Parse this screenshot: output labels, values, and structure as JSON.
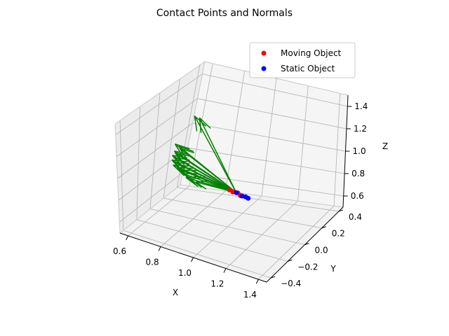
{
  "chart_data": {
    "type": "scatter",
    "title": "Contact Points and Normals",
    "xlabel": "X",
    "ylabel": "Y",
    "zlabel": "Z",
    "xlim": [
      0.55,
      1.45
    ],
    "ylim": [
      -0.45,
      0.45
    ],
    "zlim": [
      0.5,
      1.5
    ],
    "x_ticks": [
      "0.6",
      "0.8",
      "1.0",
      "1.2",
      "1.4"
    ],
    "y_ticks": [
      "−0.4",
      "−0.2",
      "0.0",
      "0.2",
      "0.4"
    ],
    "z_ticks": [
      "0.6",
      "0.8",
      "1.0",
      "1.2",
      "1.4"
    ],
    "grid": true,
    "legend_position": "top-right",
    "colors": {
      "moving": "#ff0000",
      "static": "#0000ff",
      "normals": "#008000"
    },
    "series": [
      {
        "name": "Moving Object",
        "marker": "circle",
        "points": [
          [
            1.0,
            0.0,
            0.81
          ],
          [
            1.02,
            0.0,
            0.8
          ],
          [
            1.05,
            0.0,
            0.8
          ],
          [
            1.07,
            -0.01,
            0.79
          ]
        ]
      },
      {
        "name": "Static Object",
        "marker": "circle",
        "points": [
          [
            1.04,
            0.0,
            0.8
          ],
          [
            1.08,
            -0.01,
            0.79
          ],
          [
            1.1,
            -0.01,
            0.79
          ],
          [
            1.12,
            -0.02,
            0.79
          ]
        ]
      }
    ],
    "normals": {
      "origin": [
        1.04,
        0.0,
        0.8
      ],
      "tips": [
        [
          0.72,
          0.09,
          1.3
        ],
        [
          0.74,
          0.11,
          1.28
        ],
        [
          0.64,
          0.05,
          1.06
        ],
        [
          0.66,
          0.06,
          1.04
        ],
        [
          0.66,
          0.07,
          1.02
        ],
        [
          0.64,
          0.05,
          1.0
        ],
        [
          0.64,
          0.06,
          0.98
        ],
        [
          0.63,
          0.05,
          0.96
        ],
        [
          0.64,
          0.06,
          0.94
        ],
        [
          0.63,
          0.05,
          0.92
        ],
        [
          0.64,
          0.06,
          0.9
        ],
        [
          0.64,
          0.05,
          0.88
        ],
        [
          0.66,
          0.06,
          0.86
        ],
        [
          0.68,
          0.07,
          0.84
        ],
        [
          0.7,
          0.06,
          0.82
        ],
        [
          0.72,
          0.05,
          0.8
        ],
        [
          0.74,
          0.06,
          0.79
        ],
        [
          0.78,
          0.05,
          0.78
        ]
      ]
    }
  }
}
